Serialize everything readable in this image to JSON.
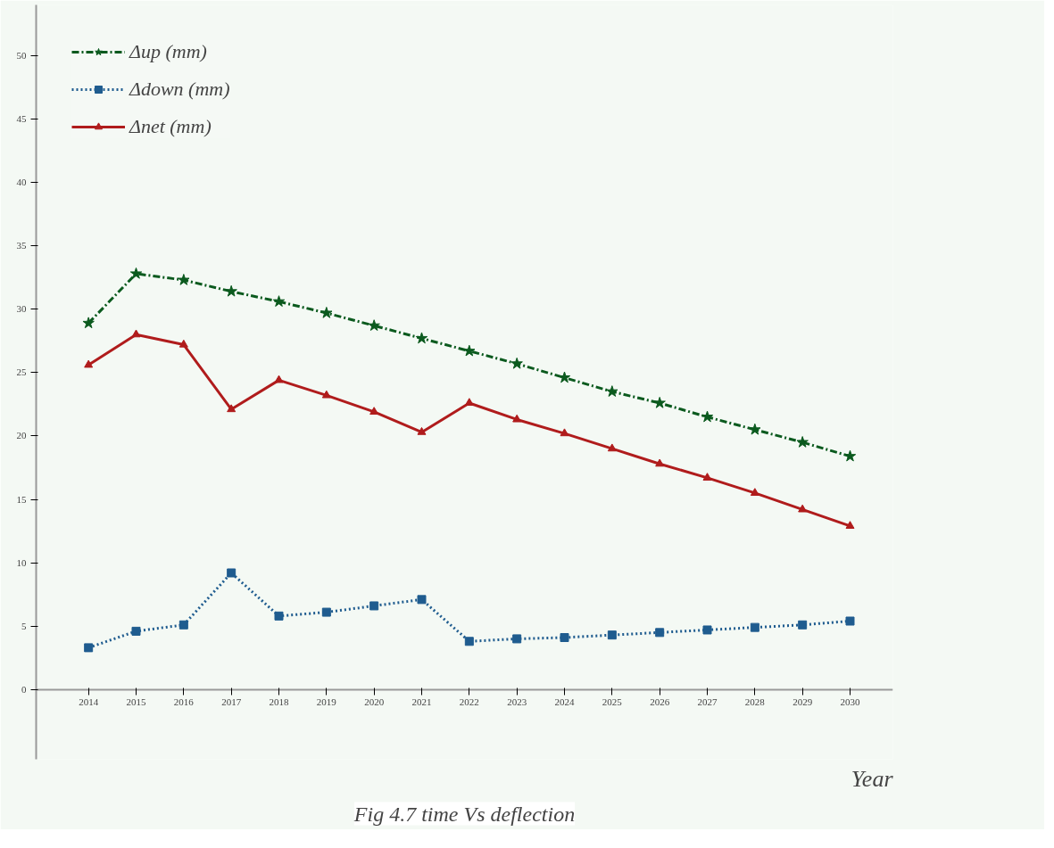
{
  "chart_data": {
    "type": "line",
    "xlabel": "Year",
    "annotations": [
      "Fig 4.7 time Vs deflection"
    ],
    "x": [
      2014,
      2015,
      2016,
      2017,
      2018,
      2019,
      2020,
      2021,
      2022,
      2023,
      2024,
      2025,
      2026,
      2027,
      2028,
      2029,
      2030
    ],
    "series": [
      {
        "name": "Δup (mm)",
        "color": "#0b5a1e",
        "marker": "star",
        "line_style": "dashed",
        "values": [
          28.9,
          32.8,
          32.3,
          31.4,
          30.6,
          29.7,
          28.7,
          27.7,
          26.7,
          25.7,
          24.6,
          23.5,
          22.6,
          21.5,
          20.5,
          19.5,
          18.4
        ]
      },
      {
        "name": "Δdown (mm)",
        "color": "#1f5c8f",
        "marker": "square",
        "line_style": "dotted",
        "values": [
          3.3,
          4.6,
          5.1,
          9.2,
          5.8,
          6.1,
          6.6,
          7.1,
          3.8,
          4.0,
          4.1,
          4.3,
          4.5,
          4.7,
          4.9,
          5.1,
          5.4
        ]
      },
      {
        "name": "Δnet (mm)",
        "color": "#b01c1c",
        "marker": "triangle",
        "line_style": "solid",
        "values": [
          25.6,
          28.0,
          27.2,
          22.1,
          24.4,
          23.2,
          21.9,
          20.3,
          22.6,
          21.3,
          20.2,
          19.0,
          17.8,
          16.7,
          15.5,
          14.2,
          12.9
        ]
      }
    ],
    "xlim": [
      2012.9,
      2030.9
    ],
    "ylim": [
      -5.5,
      54
    ],
    "xticks": [
      2014,
      2015,
      2016,
      2017,
      2018,
      2019,
      2020,
      2021,
      2022,
      2023,
      2024,
      2025,
      2026,
      2027,
      2028,
      2029,
      2030
    ],
    "yticks": [
      0,
      5,
      10,
      15,
      20,
      25,
      30,
      35,
      40,
      45,
      50
    ],
    "grid": false,
    "legend": "top left"
  }
}
